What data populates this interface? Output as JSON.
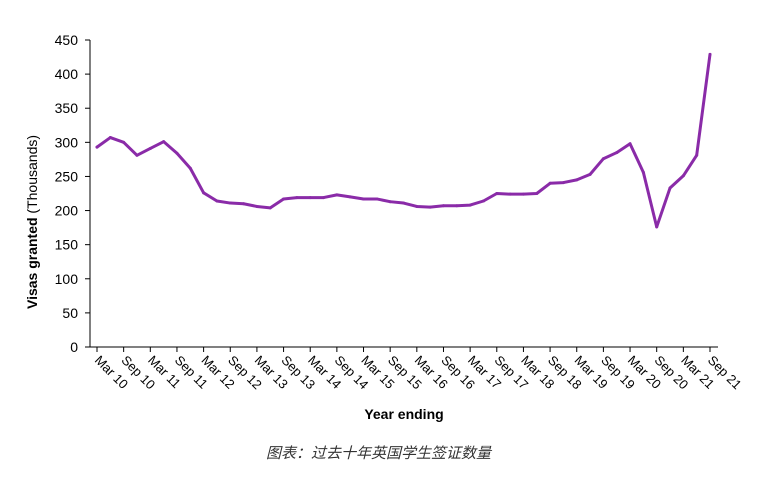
{
  "chart_data": {
    "type": "line",
    "xlabel": "Year ending",
    "ylabel_bold": "Visas granted",
    "ylabel_rest": " (Thousands)",
    "ylim": [
      0,
      450
    ],
    "yticks": [
      0,
      50,
      100,
      150,
      200,
      250,
      300,
      350,
      400,
      450
    ],
    "grid": false,
    "legend": "none",
    "line_color": "#8a2ba8",
    "x_tick_labels": [
      "Mar 10",
      "Sep 10",
      "Mar 11",
      "Sep 11",
      "Mar 12",
      "Sep 12",
      "Mar 13",
      "Sep 13",
      "Mar 14",
      "Sep 14",
      "Mar 15",
      "Sep 15",
      "Mar 16",
      "Sep 16",
      "Mar 17",
      "Sep 17",
      "Mar 18",
      "Sep 18",
      "Mar 19",
      "Sep 19",
      "Mar 20",
      "Sep 20",
      "Mar 21",
      "Sep 21"
    ],
    "series": [
      {
        "x": [
          "Mar 10",
          "Jun 10",
          "Sep 10",
          "Dec 10",
          "Mar 11",
          "Jun 11",
          "Sep 11",
          "Dec 11",
          "Mar 12",
          "Jun 12",
          "Sep 12",
          "Dec 12",
          "Mar 13",
          "Jun 13",
          "Sep 13",
          "Dec 13",
          "Mar 14",
          "Jun 14",
          "Sep 14",
          "Dec 14",
          "Mar 15",
          "Jun 15",
          "Sep 15",
          "Dec 15",
          "Mar 16",
          "Jun 16",
          "Sep 16",
          "Dec 16",
          "Mar 17",
          "Jun 17",
          "Sep 17",
          "Dec 17",
          "Mar 18",
          "Jun 18",
          "Sep 18",
          "Dec 18",
          "Mar 19",
          "Jun 19",
          "Sep 19",
          "Dec 19",
          "Mar 20",
          "Jun 20",
          "Sep 20",
          "Dec 20",
          "Mar 21",
          "Jun 21",
          "Sep 21"
        ],
        "values": [
          293,
          307,
          300,
          281,
          291,
          301,
          284,
          262,
          226,
          214,
          211,
          210,
          206,
          204,
          217,
          219,
          219,
          219,
          223,
          220,
          217,
          217,
          213,
          211,
          206,
          205,
          207,
          207,
          208,
          214,
          225,
          224,
          224,
          225,
          240,
          241,
          245,
          253,
          276,
          285,
          298,
          256,
          176,
          233,
          251,
          281,
          429
        ]
      }
    ]
  },
  "caption": "图表：过去十年英国学生签证数量"
}
